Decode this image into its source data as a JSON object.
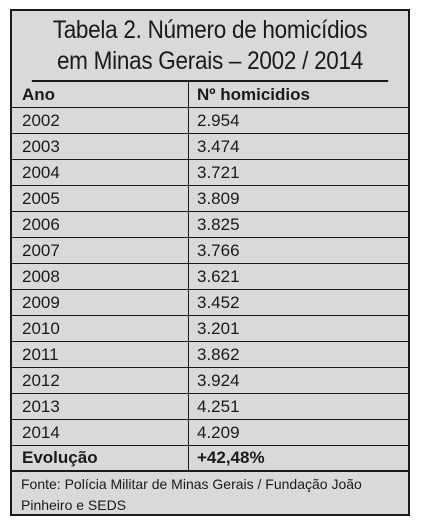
{
  "table": {
    "title_line1": "Tabela 2. Número de homicídios",
    "title_line2": "em Minas Gerais – 2002 / 2014",
    "header": {
      "col1": "Ano",
      "col2": "Nº homicidios"
    },
    "rows": [
      {
        "year": "2002",
        "value": "2.954"
      },
      {
        "year": "2003",
        "value": "3.474"
      },
      {
        "year": "2004",
        "value": "3.721"
      },
      {
        "year": "2005",
        "value": "3.809"
      },
      {
        "year": "2006",
        "value": "3.825"
      },
      {
        "year": "2007",
        "value": "3.766"
      },
      {
        "year": "2008",
        "value": "3.621"
      },
      {
        "year": "2009",
        "value": "3.452"
      },
      {
        "year": "2010",
        "value": "3.201"
      },
      {
        "year": "2011",
        "value": "3.862"
      },
      {
        "year": "2012",
        "value": "3.924"
      },
      {
        "year": "2013",
        "value": "4.251"
      },
      {
        "year": "2014",
        "value": "4.209"
      }
    ],
    "evolution": {
      "label": "Evolução",
      "value": "+42,48%"
    },
    "source": "Fonte: Polícia Militar de Minas Gerais / Fundação João Pinheiro e SEDS"
  },
  "colors": {
    "background": "#d9d9d7",
    "border": "#1a1a1a"
  }
}
